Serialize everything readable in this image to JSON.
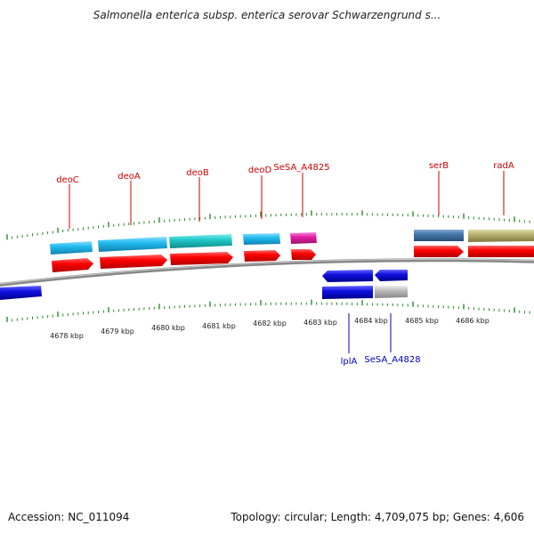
{
  "title": "Salmonella enterica subsp. enterica serovar Schwarzengrund s...",
  "footer": {
    "accession": "Accession: NC_011094",
    "summary": "Topology: circular; Length: 4,709,075 bp; Genes: 4,606"
  },
  "scale_labels": [
    "4678 kbp",
    "4679 kbp",
    "4680 kbp",
    "4681 kbp",
    "4682 kbp",
    "4683 kbp",
    "4684 kbp",
    "4685 kbp",
    "4686 kbp"
  ],
  "top_gene_labels": [
    "deoC",
    "deoA",
    "deoB",
    "deoD",
    "SeSA_A4825",
    "serB",
    "radA"
  ],
  "bottom_gene_labels": [
    "lplA",
    "SeSA_A4828"
  ],
  "colors": {
    "forward_gene": "#ff0000",
    "reverse_gene": "#1010e0",
    "deoC": "#22bbee",
    "deoA": "#22bbee",
    "deoB": "#20c8c8",
    "deoD": "#22bbee",
    "SeSA_A4825": "#e020a0",
    "serB": "#4477aa",
    "radA": "#b8b070",
    "SeSA_A4828": "#bbbbbb",
    "top_label": "#cc0000",
    "bottom_label": "#0000bb",
    "tick": "#2a8a2a",
    "backbone": "#888888"
  }
}
